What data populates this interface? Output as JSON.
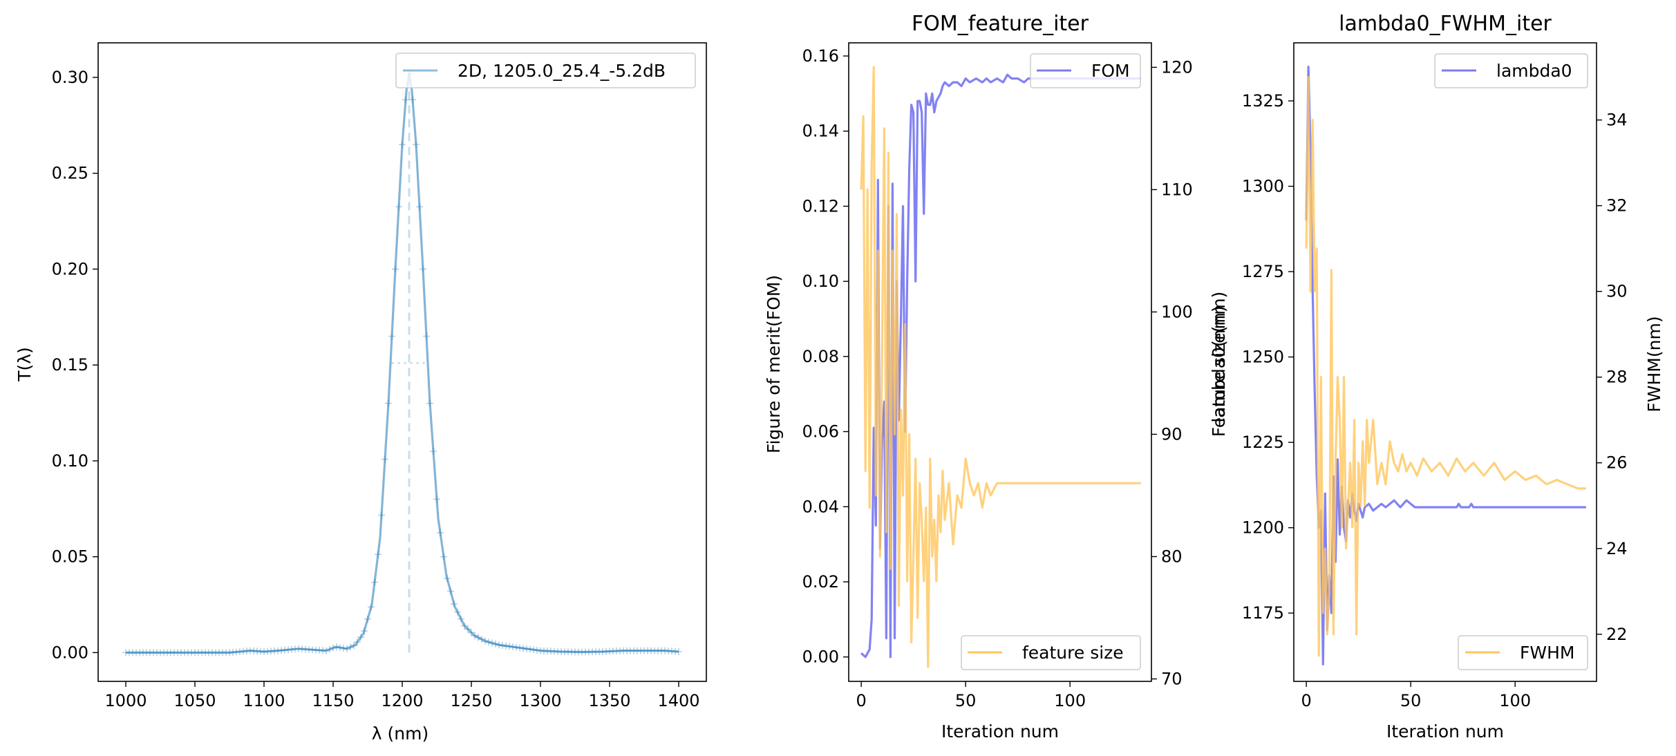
{
  "chart_data": [
    {
      "type": "line",
      "title": "",
      "xlabel": "λ (nm)",
      "ylabel": "T(λ)",
      "xlim": [
        980,
        1420
      ],
      "ylim": [
        -0.015,
        0.318
      ],
      "xticks": [
        1000,
        1050,
        1100,
        1150,
        1200,
        1250,
        1300,
        1350,
        1400
      ],
      "yticks": [
        0.0,
        0.05,
        0.1,
        0.15,
        0.2,
        0.25,
        0.3
      ],
      "ytick_labels": [
        "0.00",
        "0.05",
        "0.10",
        "0.15",
        "0.20",
        "0.25",
        "0.30"
      ],
      "color": "#1f77b4",
      "legend": {
        "position": "top-right",
        "entries": [
          "2D, 1205.0_25.4_-5.2dB"
        ]
      },
      "series": [
        {
          "name": "2D, 1205.0_25.4_-5.2dB",
          "peak_wavelength": 1205.0,
          "fwhm": 25.4,
          "peak_value": 0.302,
          "half_max": 0.151,
          "x": [
            1000,
            1020,
            1040,
            1060,
            1075,
            1090,
            1100,
            1110,
            1125,
            1135,
            1145,
            1152,
            1160,
            1166,
            1172,
            1178,
            1184,
            1190,
            1195,
            1200,
            1203,
            1205,
            1207,
            1210,
            1215,
            1220,
            1226,
            1232,
            1238,
            1245,
            1252,
            1260,
            1270,
            1280,
            1290,
            1300,
            1315,
            1330,
            1345,
            1360,
            1375,
            1390,
            1400
          ],
          "y": [
            0.0,
            0.0,
            0.0,
            0.0,
            0.0,
            0.001,
            0.0005,
            0.001,
            0.002,
            0.0015,
            0.001,
            0.003,
            0.002,
            0.004,
            0.01,
            0.025,
            0.06,
            0.13,
            0.2,
            0.265,
            0.293,
            0.302,
            0.293,
            0.265,
            0.2,
            0.13,
            0.07,
            0.04,
            0.024,
            0.014,
            0.009,
            0.006,
            0.004,
            0.003,
            0.002,
            0.001,
            0.0005,
            0.0003,
            0.0005,
            0.001,
            0.001,
            0.001,
            0.0005
          ]
        }
      ]
    },
    {
      "type": "line",
      "title": "FOM_feature_iter",
      "xlabel": "Iteration num",
      "ylabel": "Figure of merit(FOM)",
      "y2label": "Feature size(nm)",
      "xlim": [
        -6,
        139
      ],
      "ylim": [
        -0.0065,
        0.1635
      ],
      "y2lim": [
        69.8,
        122.0
      ],
      "xticks": [
        0,
        50,
        100
      ],
      "yticks": [
        0.0,
        0.02,
        0.04,
        0.06,
        0.08,
        0.1,
        0.12,
        0.14,
        0.16
      ],
      "ytick_labels": [
        "0.00",
        "0.02",
        "0.04",
        "0.06",
        "0.08",
        "0.10",
        "0.12",
        "0.14",
        "0.16"
      ],
      "y2ticks": [
        70,
        80,
        90,
        100,
        110,
        120
      ],
      "legend": {
        "entries": [
          "FOM",
          "feature size"
        ]
      },
      "series": [
        {
          "name": "FOM",
          "axis": "left",
          "color": "#7b7bf2",
          "x": [
            0,
            2,
            4,
            5,
            6,
            7,
            8,
            9,
            10,
            11,
            12,
            13,
            14,
            15,
            16,
            17,
            18,
            19,
            20,
            21,
            22,
            23,
            24,
            25,
            26,
            27,
            28,
            29,
            30,
            31,
            32,
            33,
            34,
            35,
            36,
            37,
            38,
            39,
            40,
            42,
            44,
            46,
            48,
            50,
            52,
            55,
            58,
            60,
            62,
            65,
            68,
            70,
            72,
            75,
            78,
            80,
            85,
            90,
            95,
            100,
            105,
            110,
            115,
            120,
            125,
            130,
            134
          ],
          "y": [
            0.001,
            0.0,
            0.002,
            0.01,
            0.061,
            0.035,
            0.127,
            0.029,
            0.058,
            0.068,
            0.005,
            0.12,
            0.0,
            0.126,
            0.005,
            0.1,
            0.063,
            0.09,
            0.12,
            0.06,
            0.1,
            0.13,
            0.147,
            0.145,
            0.1,
            0.148,
            0.148,
            0.145,
            0.118,
            0.15,
            0.147,
            0.147,
            0.15,
            0.145,
            0.148,
            0.149,
            0.15,
            0.152,
            0.153,
            0.152,
            0.153,
            0.153,
            0.152,
            0.154,
            0.153,
            0.154,
            0.153,
            0.154,
            0.153,
            0.154,
            0.153,
            0.155,
            0.154,
            0.154,
            0.153,
            0.154,
            0.154,
            0.154,
            0.154,
            0.154,
            0.154,
            0.154,
            0.154,
            0.154,
            0.154,
            0.154,
            0.154
          ]
        },
        {
          "name": "feature size",
          "axis": "right",
          "color": "#ffc65c",
          "x": [
            0,
            1,
            2,
            3,
            4,
            5,
            6,
            7,
            8,
            9,
            10,
            11,
            12,
            13,
            14,
            15,
            16,
            17,
            18,
            19,
            20,
            21,
            22,
            23,
            24,
            25,
            26,
            27,
            28,
            29,
            30,
            31,
            32,
            33,
            34,
            35,
            36,
            37,
            38,
            39,
            40,
            42,
            44,
            46,
            48,
            50,
            52,
            54,
            56,
            58,
            60,
            62,
            65,
            68,
            70,
            75,
            80,
            85,
            90,
            95,
            100,
            105,
            110,
            115,
            120,
            125,
            130,
            134
          ],
          "y": [
            110,
            116,
            87,
            110,
            84,
            112,
            120,
            85,
            105,
            80,
            97,
            115,
            82,
            113,
            79,
            105,
            90,
            108,
            76,
            92,
            85,
            99,
            78,
            90,
            73,
            80,
            88,
            75,
            86,
            83,
            78,
            84,
            71,
            88,
            80,
            83,
            78,
            85,
            82,
            87,
            83,
            86,
            81,
            85,
            84,
            88,
            86,
            85,
            86,
            84,
            86,
            85,
            86,
            86,
            86,
            86,
            86,
            86,
            86,
            86,
            86,
            86,
            86,
            86,
            86,
            86,
            86,
            86
          ]
        }
      ]
    },
    {
      "type": "line",
      "title": "lambda0_FWHM_iter",
      "xlabel": "Iteration num",
      "ylabel": "lambda0(nm)",
      "y2label": "FWHM(nm)",
      "xlim": [
        -6,
        139
      ],
      "ylim": [
        1155,
        1342
      ],
      "y2lim": [
        20.9,
        35.8
      ],
      "xticks": [
        0,
        50,
        100
      ],
      "yticks": [
        1175,
        1200,
        1225,
        1250,
        1275,
        1300,
        1325
      ],
      "y2ticks": [
        22,
        24,
        26,
        28,
        30,
        32,
        34
      ],
      "legend": {
        "entries": [
          "lambda0",
          "FWHM"
        ]
      },
      "series": [
        {
          "name": "lambda0",
          "axis": "left",
          "color": "#7b7bf2",
          "x": [
            0,
            1,
            2,
            3,
            4,
            5,
            6,
            7,
            8,
            9,
            10,
            11,
            12,
            13,
            14,
            15,
            16,
            17,
            18,
            19,
            20,
            21,
            22,
            23,
            24,
            25,
            26,
            27,
            28,
            30,
            32,
            34,
            36,
            38,
            40,
            42,
            45,
            48,
            50,
            52,
            55,
            60,
            65,
            70,
            72,
            73,
            74,
            76,
            78,
            79,
            80,
            85,
            90,
            100,
            110,
            120,
            134
          ],
          "y": [
            1290,
            1335,
            1310,
            1270,
            1240,
            1215,
            1200,
            1205,
            1160,
            1210,
            1170,
            1186,
            1175,
            1215,
            1190,
            1220,
            1198,
            1212,
            1200,
            1196,
            1208,
            1203,
            1210,
            1205,
            1202,
            1207,
            1205,
            1203,
            1206,
            1207,
            1205,
            1206,
            1207,
            1206,
            1207,
            1208,
            1206,
            1208,
            1207,
            1206,
            1206,
            1206,
            1206,
            1206,
            1206,
            1207,
            1206,
            1206,
            1206,
            1207,
            1206,
            1206,
            1206,
            1206,
            1206,
            1206,
            1206
          ]
        },
        {
          "name": "FWHM",
          "axis": "right",
          "color": "#ffc65c",
          "x": [
            0,
            1,
            2,
            3,
            4,
            5,
            6,
            7,
            8,
            9,
            10,
            11,
            12,
            13,
            14,
            15,
            16,
            17,
            18,
            19,
            20,
            21,
            22,
            23,
            24,
            25,
            26,
            27,
            28,
            29,
            30,
            32,
            34,
            36,
            38,
            40,
            42,
            44,
            46,
            48,
            50,
            53,
            56,
            60,
            64,
            68,
            72,
            76,
            80,
            85,
            90,
            95,
            100,
            105,
            110,
            115,
            120,
            125,
            130,
            134
          ],
          "y": [
            31,
            35,
            30,
            34,
            30,
            31,
            21.5,
            28,
            22.5,
            24,
            22,
            23,
            30.5,
            22,
            26,
            28,
            27,
            24.5,
            28,
            24,
            25,
            26,
            24.5,
            27,
            22,
            26,
            25,
            26.5,
            25,
            27,
            26,
            27,
            25.5,
            26,
            25.5,
            26.5,
            26,
            25.8,
            26.2,
            25.8,
            26,
            25.7,
            26.1,
            25.8,
            26,
            25.7,
            26.1,
            25.8,
            26,
            25.7,
            26,
            25.6,
            25.8,
            25.6,
            25.7,
            25.5,
            25.6,
            25.5,
            25.4,
            25.4
          ]
        }
      ]
    }
  ]
}
